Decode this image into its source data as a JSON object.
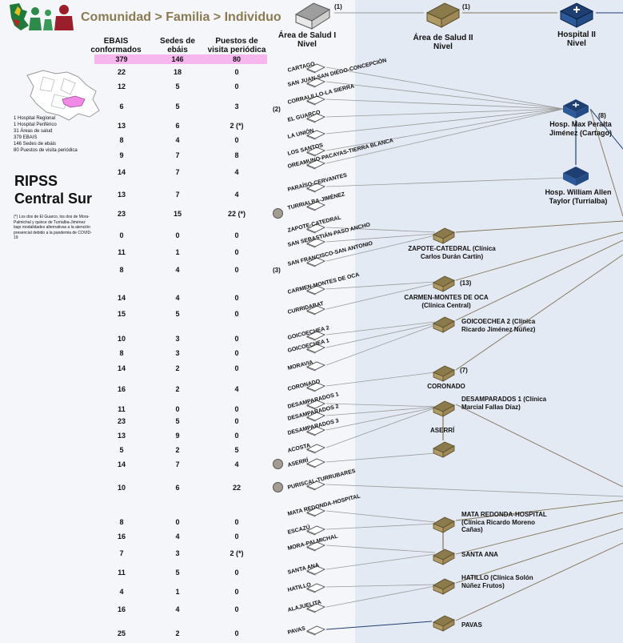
{
  "header": {
    "title": "Comunidad > Familia > Individuo",
    "col1": "EBAIS conformados",
    "col2": "Sedes de ebáis",
    "col3": "Puestos de visita periódica",
    "totals": [
      "379",
      "146",
      "80"
    ]
  },
  "tiers": [
    {
      "label": "Área de Salud I Nivel",
      "note": "(1)"
    },
    {
      "label": "Área de Salud II Nivel",
      "note": "(1)"
    },
    {
      "label": "Hospital II Nivel",
      "note": ""
    }
  ],
  "summary": [
    "1 Hospital Regional",
    "1 Hospital Periférico",
    "31 Áreas de salud",
    "379 EBAIS",
    "146 Sedes de ebáis",
    "80 Puestos de visita periódica"
  ],
  "region_title": "RIPSS Central Sur",
  "footnote": "(*) Los dos de El Guarco, los dos de Mora-Palmichal y quince de Turrialba-Jiménez bajo modalidades alternativas a la atención presencial debido a la pandemia de COVID-19",
  "rows": [
    {
      "a": "22",
      "b": "18",
      "c": "0"
    },
    {
      "a": "12",
      "b": "5",
      "c": "0"
    },
    {
      "a": "6",
      "b": "5",
      "c": "3"
    },
    {
      "a": "13",
      "b": "6",
      "c": "2 (*)"
    },
    {
      "a": "8",
      "b": "4",
      "c": "0"
    },
    {
      "a": "9",
      "b": "7",
      "c": "8"
    },
    {
      "a": "14",
      "b": "7",
      "c": "4"
    },
    {
      "a": "13",
      "b": "7",
      "c": "4"
    },
    {
      "a": "23",
      "b": "15",
      "c": "22 (*)"
    },
    {
      "a": "0",
      "b": "0",
      "c": "0"
    },
    {
      "a": "11",
      "b": "1",
      "c": "0"
    },
    {
      "a": "8",
      "b": "4",
      "c": "0"
    },
    {
      "a": "14",
      "b": "4",
      "c": "0"
    },
    {
      "a": "15",
      "b": "5",
      "c": "0"
    },
    {
      "a": "10",
      "b": "3",
      "c": "0"
    },
    {
      "a": "8",
      "b": "3",
      "c": "0"
    },
    {
      "a": "14",
      "b": "2",
      "c": "0"
    },
    {
      "a": "16",
      "b": "2",
      "c": "4"
    },
    {
      "a": "11",
      "b": "0",
      "c": "0"
    },
    {
      "a": "23",
      "b": "5",
      "c": "0"
    },
    {
      "a": "13",
      "b": "9",
      "c": "0"
    },
    {
      "a": "5",
      "b": "2",
      "c": "5"
    },
    {
      "a": "14",
      "b": "7",
      "c": "4"
    },
    {
      "a": "10",
      "b": "6",
      "c": "22"
    },
    {
      "a": "8",
      "b": "0",
      "c": "0"
    },
    {
      "a": "16",
      "b": "4",
      "c": "0"
    },
    {
      "a": "7",
      "b": "3",
      "c": "2 (*)"
    },
    {
      "a": "11",
      "b": "5",
      "c": "0"
    },
    {
      "a": "4",
      "b": "1",
      "c": "0"
    },
    {
      "a": "16",
      "b": "4",
      "c": "0"
    },
    {
      "a": "25",
      "b": "2",
      "c": "0"
    }
  ],
  "areas": [
    "CARTAGO",
    "SAN JUAN-SAN DIEGO-CONCEPCIÓN",
    "CORRALILLO-LA SIERRA",
    "EL GUARCO",
    "LA UNIÓN",
    "LOS SANTOS",
    "OREAMUNO-PACAYAS-TIERRA BLANCA",
    "PARAÍSO-CERVANTES",
    "TURRIALBA-JIMÉNEZ",
    "ZAPOTE-CATEDRAL",
    "SAN SEBASTIÁN-PASO ANCHO",
    "SAN FRANCISCO-SAN ANTONIO",
    "CARMEN-MONTES DE OCA",
    "CURRIDABAT",
    "GOICOECHEA 2",
    "GOICOECHEA 1",
    "MORAVIA",
    "CORONADO",
    "DESAMPARADOS 1",
    "DESAMPARADOS 2",
    "DESAMPARADOS 3",
    "ACOSTA",
    "ASERRÍ",
    "PURISCAL-TURRUBARES",
    "MATA REDONDA-HOSPITAL",
    "ESCAZÚ",
    "MORA-PALMICHAL",
    "SANTA ANA",
    "HATILLO",
    "ALAJUELITA",
    "PAVAS"
  ],
  "group_notes": [
    "(2)",
    "(3)"
  ],
  "hospitals": [
    {
      "label": "Hosp. Max Peralta Jiménez (Cartago)",
      "note": "(8)"
    },
    {
      "label": "Hosp. William Allen Taylor (Turrialba)",
      "note": ""
    }
  ],
  "clinics": [
    {
      "label": "ZAPOTE-CATEDRAL (Clínica Carlos Durán Cartín)",
      "note": ""
    },
    {
      "label": "CARMEN-MONTES DE OCA (Clínica Central)",
      "note": "(13)"
    },
    {
      "label": "GOICOECHEA 2 (Clínica Ricardo Jiménez Núñez)",
      "note": ""
    },
    {
      "label": "CORONADO",
      "note": "(7)"
    },
    {
      "label": "DESAMPARADOS 1 (Clínica Marcial Fallas Díaz)",
      "note": ""
    },
    {
      "label": "ASERRÍ",
      "note": ""
    },
    {
      "label": "MATA REDONDA-HOSPITAL (Clínica Ricardo Moreno Cañas)",
      "note": ""
    },
    {
      "label": "SANTA ANA",
      "note": ""
    },
    {
      "label": "HATILLO (Clínica Solón Núñez Frutos)",
      "note": ""
    },
    {
      "label": "PAVAS",
      "note": ""
    }
  ],
  "colors": {
    "brown": "#8b7a4b",
    "navy": "#1f3f73",
    "pink": "#f5b7ee",
    "panel": "#e4eaf3",
    "line": "#9a9a9a",
    "olive": "#7f7454"
  }
}
